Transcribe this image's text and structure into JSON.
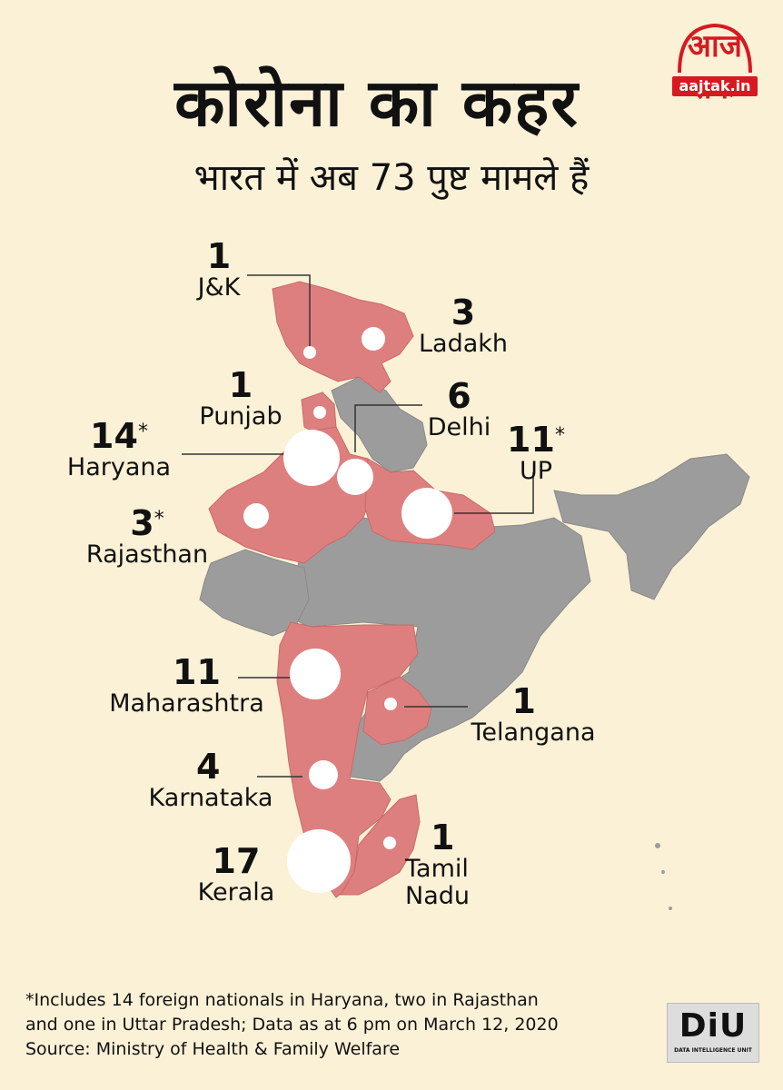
{
  "title": "कोरोना का कहर",
  "subtitle": "भारत में अब 73 पुष्ट मामले हैं",
  "logo": {
    "text": "आज तक",
    "url": "aajtak.in"
  },
  "states": [
    {
      "count": "1",
      "name": "J&K",
      "asterisk": ""
    },
    {
      "count": "3",
      "name": "Ladakh",
      "asterisk": ""
    },
    {
      "count": "1",
      "name": "Punjab",
      "asterisk": ""
    },
    {
      "count": "6",
      "name": "Delhi",
      "asterisk": ""
    },
    {
      "count": "14",
      "name": "Haryana",
      "asterisk": "*"
    },
    {
      "count": "11",
      "name": "UP",
      "asterisk": "*"
    },
    {
      "count": "3",
      "name": "Rajasthan",
      "asterisk": "*"
    },
    {
      "count": "11",
      "name": "Maharashtra",
      "asterisk": ""
    },
    {
      "count": "1",
      "name": "Telangana",
      "asterisk": ""
    },
    {
      "count": "4",
      "name": "Karnataka",
      "asterisk": ""
    },
    {
      "count": "17",
      "name": "Kerala",
      "asterisk": ""
    },
    {
      "count": "1",
      "name": "Tamil Nadu",
      "asterisk": ""
    }
  ],
  "footnote": [
    "*Includes 14 foreign nationals in Haryana, two in Rajasthan",
    "and one in Uttar Pradesh; Data as at 6 pm on March 12, 2020",
    "Source: Ministry of Health & Family Welfare"
  ],
  "diu": {
    "main": "DiU",
    "sub": "DATA INTELLIGENCE UNIT"
  },
  "colors": {
    "background": "#fbf1d6",
    "affected": "#de7f7f",
    "unaffected": "#9c9c9c",
    "bubble": "#ffffff"
  }
}
